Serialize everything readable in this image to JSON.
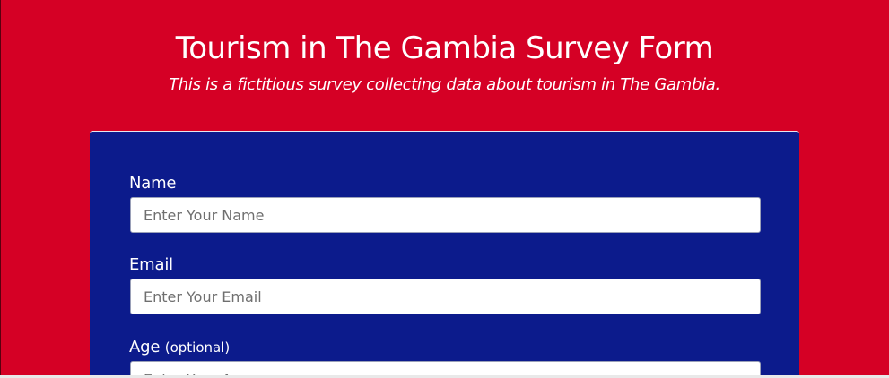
{
  "header": {
    "title": "Tourism in The Gambia Survey Form",
    "description": "This is a fictitious survey collecting data about tourism in The Gambia."
  },
  "form": {
    "name": {
      "label": "Name",
      "placeholder": "Enter Your Name",
      "value": ""
    },
    "email": {
      "label": "Email",
      "placeholder": "Enter Your Email",
      "value": ""
    },
    "age": {
      "label": "Age",
      "optional_note": "(optional)",
      "placeholder": "Enter Your Age",
      "value": ""
    }
  },
  "colors": {
    "page_background": "#d50025",
    "form_background": "#0c1b8c",
    "text": "#ffffff",
    "input_background": "#ffffff"
  }
}
